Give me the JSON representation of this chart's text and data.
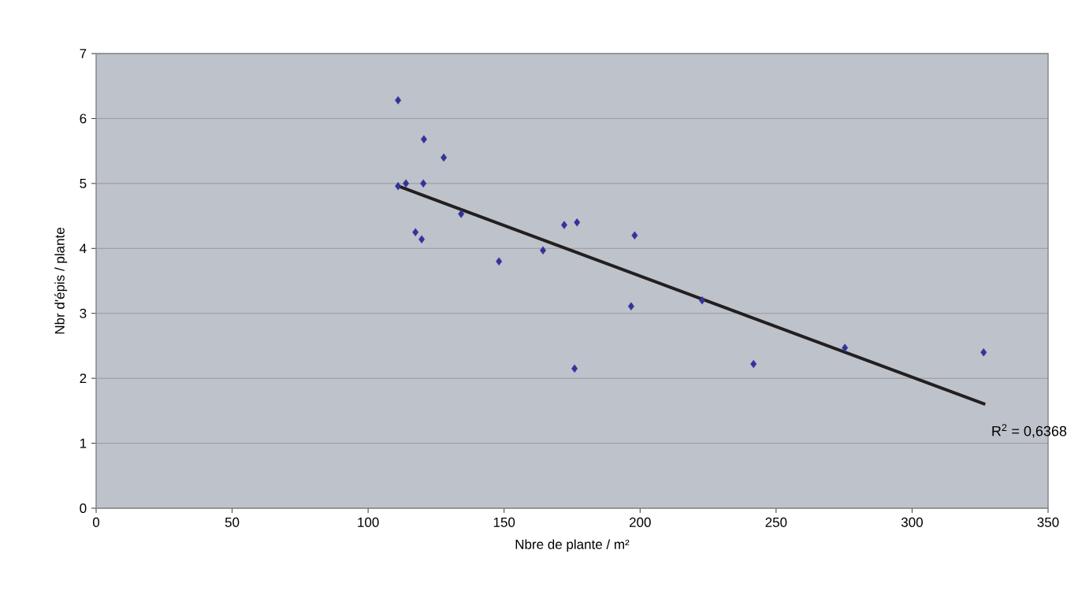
{
  "chart_data": {
    "type": "scatter",
    "xlabel": "Nbre de plante / m²",
    "ylabel": "Nbr d'épis / plante",
    "xlim": [
      0,
      350
    ],
    "xticks": [
      0,
      50,
      100,
      150,
      200,
      250,
      300,
      350
    ],
    "ylim": [
      0,
      7
    ],
    "yticks": [
      0,
      1,
      2,
      3,
      4,
      5,
      6,
      7
    ],
    "grid": "y",
    "marker": "diamond",
    "series": [
      {
        "color": "#333399",
        "x": [
          111.0,
          111.0,
          113.9,
          120.5,
          120.3,
          127.8,
          117.4,
          119.7,
          134.2,
          148.1,
          164.3,
          172.1,
          176.8,
          175.9,
          196.7,
          198.0,
          222.8,
          241.7,
          275.3,
          326.3
        ],
        "values": [
          6.28,
          4.96,
          5.0,
          5.68,
          5.0,
          5.4,
          4.25,
          4.14,
          4.53,
          3.8,
          3.97,
          4.36,
          4.4,
          2.15,
          3.11,
          4.2,
          3.2,
          2.22,
          2.47,
          2.4
        ]
      },
      {
        "type": "line",
        "color": "#231f20",
        "marker": "none",
        "line_style": "solid",
        "x": [
          111.0,
          326.9
        ],
        "values": [
          4.96,
          1.6
        ]
      }
    ],
    "annotations": [
      "R$^{2}$ = 0,6368"
    ]
  }
}
